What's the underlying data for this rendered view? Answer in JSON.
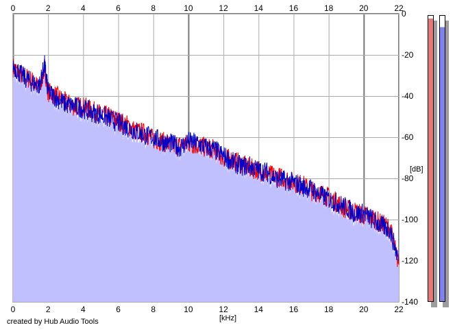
{
  "chart_data": {
    "type": "area",
    "xlabel": "[kHz]",
    "ylabel": "[dB]",
    "xlim": [
      0,
      22
    ],
    "ylim": [
      -140,
      0
    ],
    "x_ticks": [
      "0",
      "2",
      "4",
      "6",
      "8",
      "10",
      "12",
      "14",
      "16",
      "18",
      "20",
      "22"
    ],
    "y_ticks": [
      "0",
      "-20",
      "-40",
      "-60",
      "-80",
      "-100",
      "-120",
      "-140"
    ],
    "grid": true,
    "series": [
      {
        "color": "#ff0000",
        "x": [
          0,
          0.5,
          1,
          1.5,
          1.8,
          2,
          2.5,
          3,
          3.5,
          4,
          4.5,
          5,
          5.5,
          6,
          6.5,
          7,
          7.5,
          8,
          8.5,
          9,
          9.5,
          10,
          10.5,
          11,
          11.5,
          12,
          12.5,
          13,
          13.5,
          14,
          14.5,
          15,
          15.5,
          16,
          16.5,
          17,
          17.5,
          18,
          18.5,
          19,
          19.5,
          20,
          20.5,
          21,
          21.5,
          22
        ],
        "values": [
          -26,
          -30,
          -32,
          -36,
          -26,
          -38,
          -40,
          -43,
          -45,
          -45,
          -47,
          -49,
          -50,
          -52,
          -54,
          -57,
          -58,
          -61,
          -62,
          -64,
          -64,
          -63,
          -64,
          -65,
          -66,
          -70,
          -71,
          -73,
          -75,
          -76,
          -78,
          -79,
          -80,
          -82,
          -83,
          -86,
          -87,
          -89,
          -92,
          -95,
          -96,
          -98,
          -99,
          -102,
          -104,
          -122
        ]
      },
      {
        "color": "#0000cc",
        "x": [
          0,
          0.5,
          1,
          1.5,
          1.8,
          2,
          2.5,
          3,
          3.5,
          4,
          4.5,
          5,
          5.5,
          6,
          6.5,
          7,
          7.5,
          8,
          8.5,
          9,
          9.5,
          10,
          10.5,
          11,
          11.5,
          12,
          12.5,
          13,
          13.5,
          14,
          14.5,
          15,
          15.5,
          16,
          16.5,
          17,
          17.5,
          18,
          18.5,
          19,
          19.5,
          20,
          20.5,
          21,
          21.5,
          22
        ],
        "values": [
          -25,
          -30,
          -33,
          -35,
          -25,
          -38,
          -41,
          -44,
          -45,
          -46,
          -48,
          -49,
          -51,
          -53,
          -55,
          -57,
          -59,
          -60,
          -62,
          -63,
          -65,
          -62,
          -63,
          -65,
          -66,
          -69,
          -72,
          -74,
          -74,
          -76,
          -77,
          -80,
          -81,
          -82,
          -84,
          -85,
          -88,
          -90,
          -92,
          -94,
          -97,
          -97,
          -100,
          -103,
          -105,
          -120
        ]
      }
    ],
    "fill_color": "#c0c0ff"
  },
  "meters": [
    {
      "color": "#e87878",
      "level": 0.99
    },
    {
      "color": "#8080ee",
      "level": 0.96
    }
  ],
  "credit": "created by Hub Audio Tools"
}
